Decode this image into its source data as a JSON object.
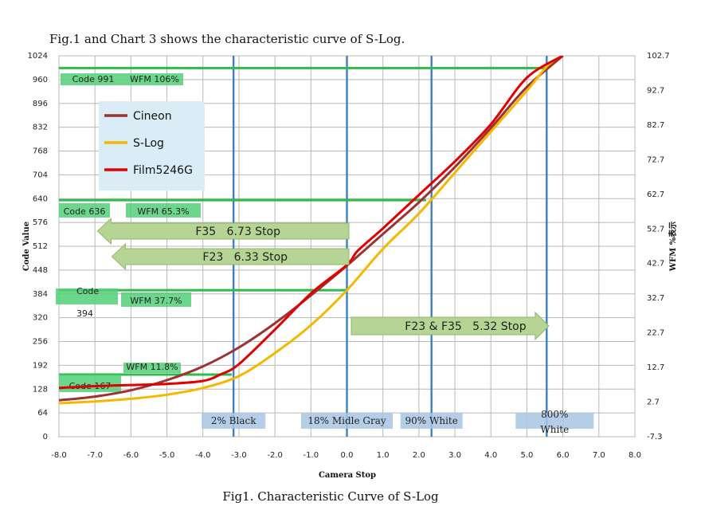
{
  "header": {
    "title": "Fig.1 and Chart 3 shows the characteristic curve of S-Log."
  },
  "footer": {
    "caption": "Fig1. Characteristic Curve of S-Log"
  },
  "chart_data": {
    "type": "line",
    "xlabel": "Camera Stop",
    "ylabel": "Code Value",
    "y2label": "WFM %表示",
    "xlim": [
      -8.0,
      8.0
    ],
    "ylim": [
      0,
      1024
    ],
    "y2lim": [
      -7.3,
      102.7
    ],
    "grid": true,
    "legend_position": "top-left",
    "x_ticks": [
      "-8.0",
      "-7.0",
      "-6.0",
      "-5.0",
      "-4.0",
      "-3.0",
      "-2.0",
      "-1.0",
      "0.0",
      "1.0",
      "2.0",
      "3.0",
      "4.0",
      "5.0",
      "6.0",
      "7.0",
      "8.0"
    ],
    "y_ticks": [
      {
        "value": 0,
        "label": "0"
      },
      {
        "value": 64,
        "label": "64"
      },
      {
        "value": 128,
        "label": "128"
      },
      {
        "value": 192,
        "label": "192"
      },
      {
        "value": 256,
        "label": "256"
      },
      {
        "value": 320,
        "label": "320"
      },
      {
        "value": 384,
        "label": "384"
      },
      {
        "value": 448,
        "label": "448"
      },
      {
        "value": 512,
        "label": "512"
      },
      {
        "value": 576,
        "label": "576"
      },
      {
        "value": 640,
        "label": "640"
      },
      {
        "value": 704,
        "label": "704"
      },
      {
        "value": 768,
        "label": "768"
      },
      {
        "value": 832,
        "label": "832"
      },
      {
        "value": 896,
        "label": "896"
      },
      {
        "value": 960,
        "label": "960"
      },
      {
        "value": 1024,
        "label": "1024"
      }
    ],
    "y2_ticks": [
      "102.7",
      "92.7",
      "82.7",
      "72.7",
      "62.7",
      "52.7",
      "42.7",
      "32.7",
      "22.7",
      "12.7",
      "2.7",
      "-7.3"
    ],
    "series": [
      {
        "name": "Cineon",
        "color": "#9b3333",
        "x": [
          -8.0,
          -7.0,
          -6.0,
          -5.0,
          -4.0,
          -3.0,
          -2.0,
          -1.0,
          0.0,
          1.0,
          2.0,
          3.0,
          4.0,
          5.0,
          6.0
        ],
        "y": [
          98,
          108,
          125,
          152,
          189,
          240,
          305,
          380,
          460,
          545,
          630,
          725,
          830,
          940,
          1024
        ]
      },
      {
        "name": "S-Log",
        "color": "#f5b800",
        "x": [
          -8.0,
          -7.0,
          -6.0,
          -5.0,
          -4.0,
          -3.0,
          -2.0,
          -1.0,
          0.0,
          1.0,
          2.0,
          3.0,
          4.0,
          5.0,
          5.6,
          6.0
        ],
        "y": [
          90,
          95,
          102,
          113,
          131,
          163,
          225,
          300,
          394,
          505,
          600,
          710,
          820,
          930,
          1000,
          1024
        ]
      },
      {
        "name": "Film5246G",
        "color": "#e00000",
        "x": [
          -8.0,
          -7.0,
          -6.0,
          -5.0,
          -4.0,
          -3.5,
          -3.0,
          -2.0,
          -1.0,
          0.0,
          0.3,
          1.0,
          2.0,
          3.0,
          4.0,
          5.0,
          6.0
        ],
        "y": [
          131,
          136,
          139,
          142,
          150,
          168,
          195,
          288,
          385,
          462,
          500,
          560,
          650,
          740,
          840,
          965,
          1024
        ]
      }
    ],
    "horizontal_markers": [
      {
        "value": 991,
        "code_label": "Code 991",
        "wfm_label": "WFM 106%"
      },
      {
        "value": 636,
        "code_label": "Code 636",
        "wfm_label": "WFM 65.3%"
      },
      {
        "value": 394,
        "code_label_1": "Code",
        "code_label_2": "394",
        "wfm_label": "WFM 37.7%"
      },
      {
        "value": 167,
        "code_label": "Code 167",
        "wfm_label": "WFM 11.8%"
      }
    ],
    "vertical_markers": [
      {
        "x": -3.15,
        "label": "2% Black"
      },
      {
        "x": 0.0,
        "label": "18% Midle Gray"
      },
      {
        "x": 2.35,
        "label": "90% White"
      },
      {
        "x": 5.55,
        "label_1": "800%",
        "label_2": "White"
      }
    ],
    "range_arrows": [
      {
        "label": "F35   6.73 Stop",
        "from": 0.0,
        "to": -6.73
      },
      {
        "label": "F23   6.33 Stop",
        "from": 0.0,
        "to": -6.33
      },
      {
        "label": "F23 & F35   5.32 Stop",
        "from": 0.0,
        "to": 5.32
      }
    ]
  }
}
